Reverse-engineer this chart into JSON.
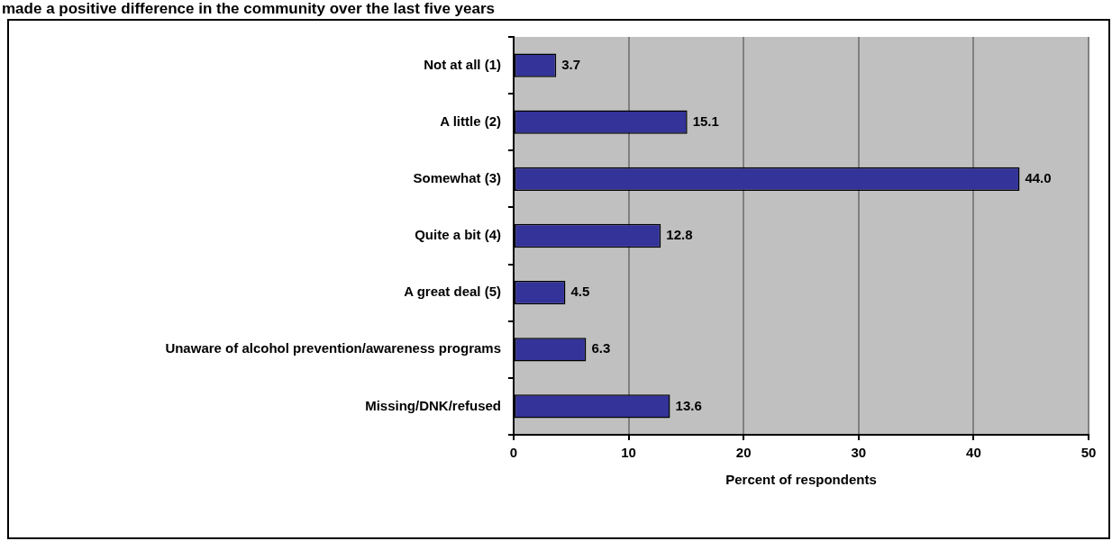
{
  "chart_data": {
    "type": "bar",
    "orientation": "horizontal",
    "title": "made a positive difference in the community over the last five years",
    "xlabel": "Percent of respondents",
    "categories": [
      "Not at all (1)",
      "A little (2)",
      "Somewhat (3)",
      "Quite a bit (4)",
      "A great deal (5)",
      "Unaware of alcohol prevention/awareness programs",
      "Missing/DNK/refused"
    ],
    "values": [
      3.7,
      15.1,
      44.0,
      12.8,
      4.5,
      6.3,
      13.6
    ],
    "value_labels": [
      "3.7",
      "15.1",
      "44.0",
      "12.8",
      "4.5",
      "6.3",
      "13.6"
    ],
    "color": "#333399",
    "xlim": [
      0,
      50
    ],
    "xticks": [
      0,
      10,
      20,
      30,
      40,
      50
    ],
    "grid": "x",
    "legend": false
  }
}
